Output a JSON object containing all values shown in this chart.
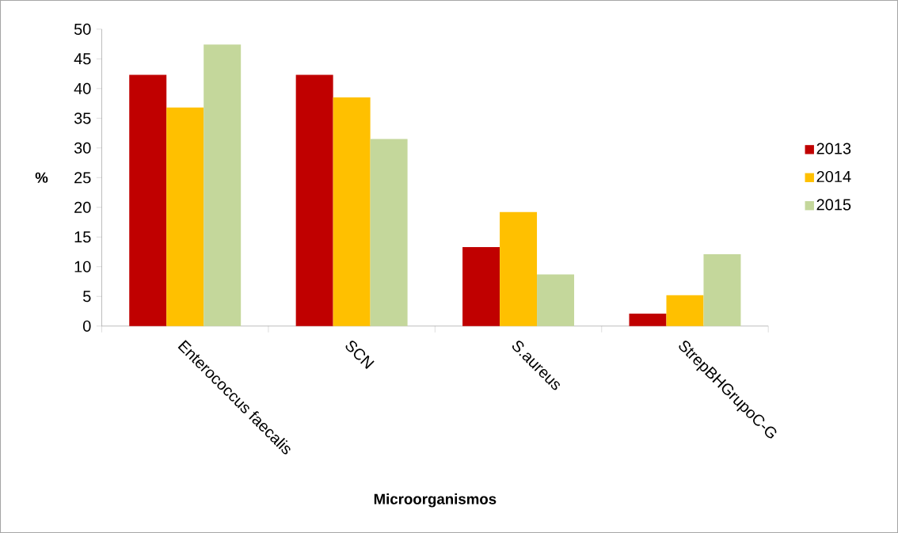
{
  "chart_data": {
    "type": "bar",
    "xlabel": "Microorganismos",
    "ylabel": "%",
    "categories": [
      "Enterococcus faecalis",
      "SCN",
      "S.aureus",
      "StrepBHGrupoC-G"
    ],
    "series": [
      {
        "name": "2013",
        "color": "#c00000",
        "values": [
          42.3,
          42.3,
          13.3,
          2.1
        ]
      },
      {
        "name": "2014",
        "color": "#ffc000",
        "values": [
          36.8,
          38.5,
          19.2,
          5.2
        ]
      },
      {
        "name": "2015",
        "color": "#c4d79b",
        "values": [
          47.4,
          31.5,
          8.7,
          12.1
        ]
      }
    ],
    "ylim": [
      0,
      50
    ],
    "yticks": [
      0,
      5,
      10,
      15,
      20,
      25,
      30,
      35,
      40,
      45,
      50
    ],
    "grid": false,
    "legend": "right"
  }
}
